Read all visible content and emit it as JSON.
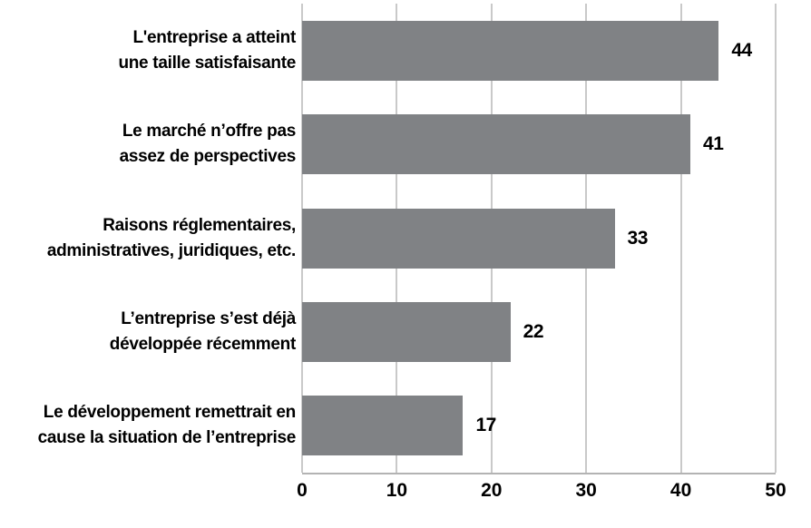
{
  "chart_data": {
    "type": "bar",
    "orientation": "horizontal",
    "title": "",
    "xlabel": "",
    "ylabel": "",
    "categories": [
      [
        "L'entreprise a atteint",
        "une taille satisfaisante"
      ],
      [
        "Le marché n’offre pas",
        "assez de perspectives"
      ],
      [
        "Raisons réglementaires,",
        "administratives, juridiques, etc."
      ],
      [
        "L’entreprise s’est déjà",
        "développée récemment"
      ],
      [
        "Le développement remettrait en",
        "cause la situation de l’entreprise"
      ]
    ],
    "values": [
      44,
      41,
      33,
      22,
      17
    ],
    "value_labels": [
      "44",
      "41",
      "33",
      "22",
      "17"
    ],
    "xlim": [
      0,
      50
    ],
    "x_ticks": [
      0,
      10,
      20,
      30,
      40,
      50
    ],
    "x_tick_labels": [
      "0",
      "10",
      "20",
      "30",
      "40",
      "50"
    ],
    "grid": "vertical",
    "legend": "none",
    "bar_color": "#808285",
    "gridline_color": "#c9c9c9",
    "axis_line_color": "#b3b3b3",
    "text_color": "#000000",
    "background_color": "#ffffff"
  }
}
